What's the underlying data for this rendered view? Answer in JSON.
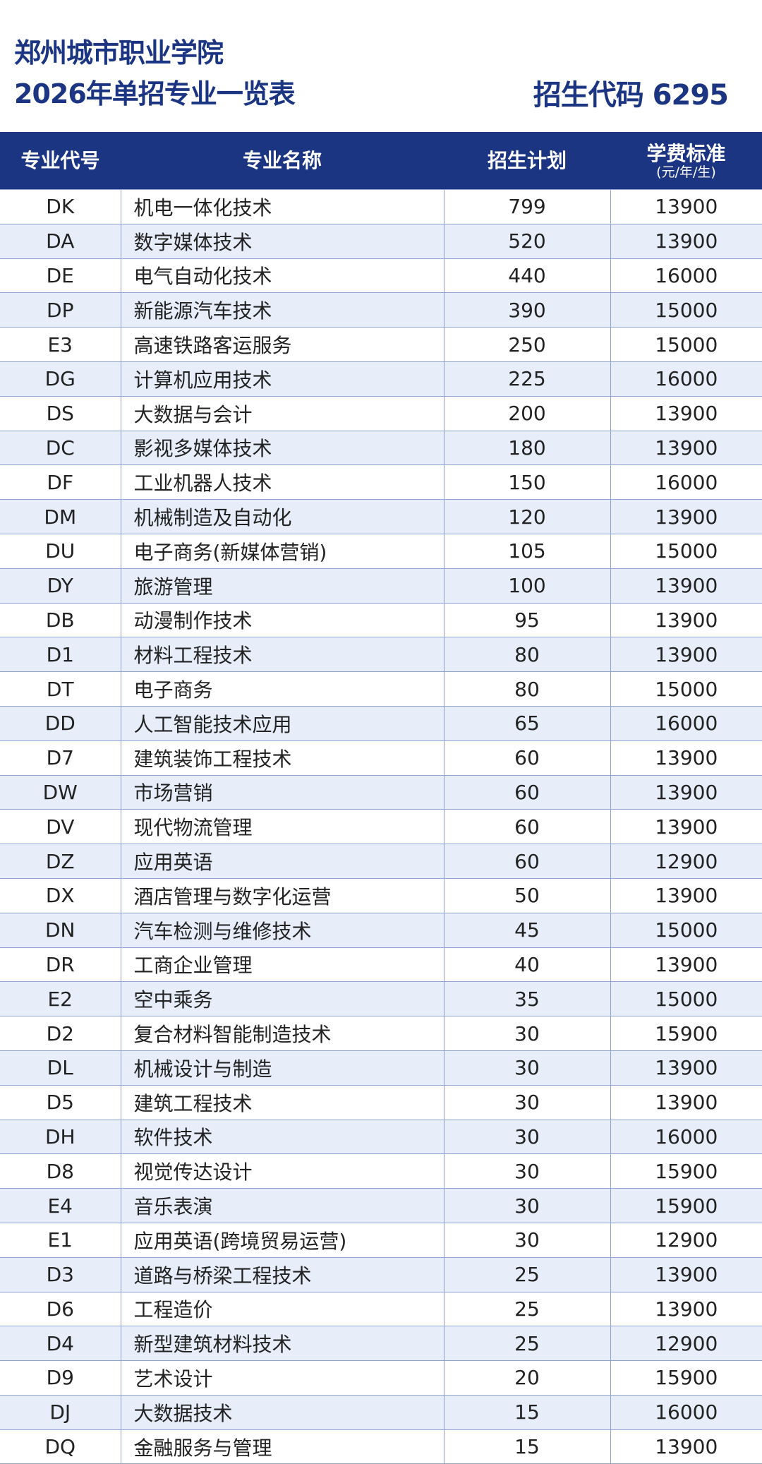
{
  "title_line1": "郑州城市职业学院",
  "title_line2": "2026年单招专业一览表",
  "enroll_code": "招生代码 6295",
  "colors": {
    "header_bg": "#1b3582",
    "row_alt": "#e7eefa",
    "border": "#8fa3cf"
  },
  "headers": {
    "code": "专业代号",
    "name": "专业名称",
    "plan": "招生计划",
    "fee": "学费标准",
    "fee_unit": "(元/年/生)"
  },
  "rows": [
    [
      "DK",
      "机电一体化技术",
      "799",
      "13900"
    ],
    [
      "DA",
      "数字媒体技术",
      "520",
      "13900"
    ],
    [
      "DE",
      "电气自动化技术",
      "440",
      "16000"
    ],
    [
      "DP",
      "新能源汽车技术",
      "390",
      "15000"
    ],
    [
      "E3",
      "高速铁路客运服务",
      "250",
      "15000"
    ],
    [
      "DG",
      "计算机应用技术",
      "225",
      "16000"
    ],
    [
      "DS",
      "大数据与会计",
      "200",
      "13900"
    ],
    [
      "DC",
      "影视多媒体技术",
      "180",
      "13900"
    ],
    [
      "DF",
      "工业机器人技术",
      "150",
      "16000"
    ],
    [
      "DM",
      "机械制造及自动化",
      "120",
      "13900"
    ],
    [
      "DU",
      "电子商务(新媒体营销)",
      "105",
      "15000"
    ],
    [
      "DY",
      "旅游管理",
      "100",
      "13900"
    ],
    [
      "DB",
      "动漫制作技术",
      "95",
      "13900"
    ],
    [
      "D1",
      "材料工程技术",
      "80",
      "13900"
    ],
    [
      "DT",
      "电子商务",
      "80",
      "15000"
    ],
    [
      "DD",
      "人工智能技术应用",
      "65",
      "16000"
    ],
    [
      "D7",
      "建筑装饰工程技术",
      "60",
      "13900"
    ],
    [
      "DW",
      "市场营销",
      "60",
      "13900"
    ],
    [
      "DV",
      "现代物流管理",
      "60",
      "13900"
    ],
    [
      "DZ",
      "应用英语",
      "60",
      "12900"
    ],
    [
      "DX",
      "酒店管理与数字化运营",
      "50",
      "13900"
    ],
    [
      "DN",
      "汽车检测与维修技术",
      "45",
      "15000"
    ],
    [
      "DR",
      "工商企业管理",
      "40",
      "13900"
    ],
    [
      "E2",
      "空中乘务",
      "35",
      "15000"
    ],
    [
      "D2",
      "复合材料智能制造技术",
      "30",
      "15900"
    ],
    [
      "DL",
      "机械设计与制造",
      "30",
      "13900"
    ],
    [
      "D5",
      "建筑工程技术",
      "30",
      "13900"
    ],
    [
      "DH",
      "软件技术",
      "30",
      "16000"
    ],
    [
      "D8",
      "视觉传达设计",
      "30",
      "15900"
    ],
    [
      "E4",
      "音乐表演",
      "30",
      "15900"
    ],
    [
      "E1",
      "应用英语(跨境贸易运营)",
      "30",
      "12900"
    ],
    [
      "D3",
      "道路与桥梁工程技术",
      "25",
      "13900"
    ],
    [
      "D6",
      "工程造价",
      "25",
      "13900"
    ],
    [
      "D4",
      "新型建筑材料技术",
      "25",
      "12900"
    ],
    [
      "D9",
      "艺术设计",
      "20",
      "15900"
    ],
    [
      "DJ",
      "大数据技术",
      "15",
      "16000"
    ],
    [
      "DQ",
      "金融服务与管理",
      "15",
      "13900"
    ]
  ]
}
